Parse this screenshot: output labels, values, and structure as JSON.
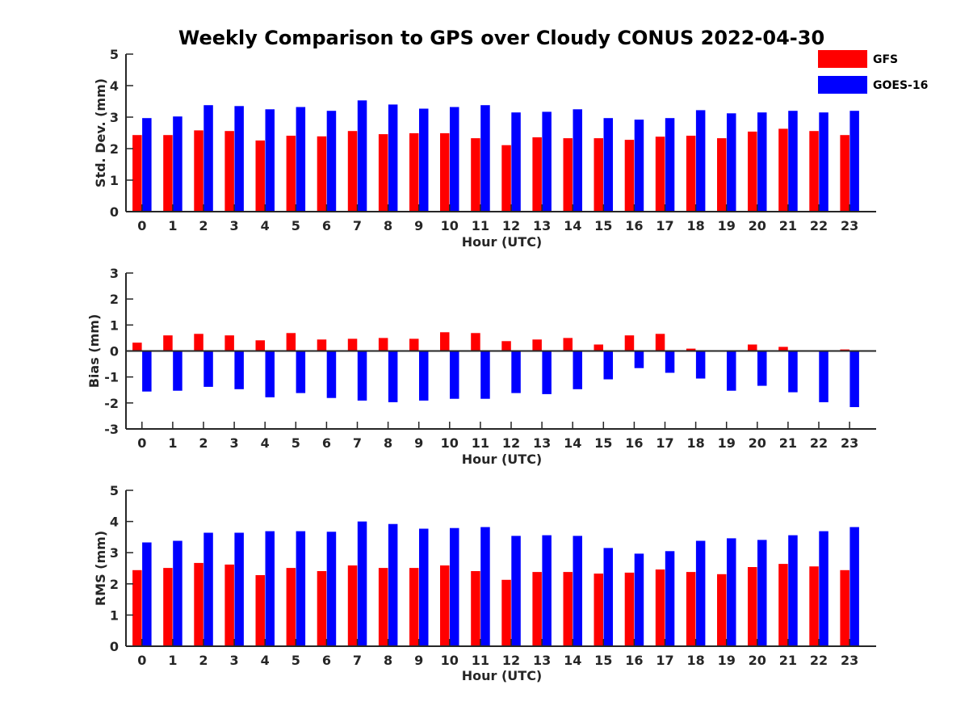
{
  "title": "Weekly Comparison to GPS over Cloudy CONUS 2022-04-30",
  "legend": [
    {
      "name": "GFS",
      "color": "#ff0000"
    },
    {
      "name": "GOES-16",
      "color": "#0000ff"
    }
  ],
  "chart_data": [
    {
      "type": "bar",
      "title": "Weekly Comparison to GPS over Cloudy CONUS 2022-04-30",
      "xlabel": "Hour (UTC)",
      "ylabel": "Std. Dev. (mm)",
      "ylim": [
        0,
        5
      ],
      "yticks": [
        0,
        1,
        2,
        3,
        4,
        5
      ],
      "categories": [
        "0",
        "1",
        "2",
        "3",
        "4",
        "5",
        "6",
        "7",
        "8",
        "9",
        "10",
        "11",
        "12",
        "13",
        "14",
        "15",
        "16",
        "17",
        "18",
        "19",
        "20",
        "21",
        "22",
        "23"
      ],
      "legend_position": "top-right",
      "grid": false,
      "series": [
        {
          "name": "GFS",
          "color": "#ff0000",
          "values": [
            2.43,
            2.43,
            2.58,
            2.56,
            2.26,
            2.41,
            2.39,
            2.56,
            2.46,
            2.49,
            2.49,
            2.33,
            2.11,
            2.36,
            2.33,
            2.33,
            2.28,
            2.38,
            2.41,
            2.33,
            2.54,
            2.63,
            2.56,
            2.43
          ]
        },
        {
          "name": "GOES-16",
          "color": "#0000ff",
          "values": [
            2.97,
            3.02,
            3.38,
            3.35,
            3.25,
            3.32,
            3.2,
            3.53,
            3.4,
            3.27,
            3.32,
            3.38,
            3.15,
            3.17,
            3.25,
            2.97,
            2.92,
            2.97,
            3.22,
            3.12,
            3.15,
            3.2,
            3.15,
            3.2
          ]
        }
      ]
    },
    {
      "type": "bar",
      "xlabel": "Hour (UTC)",
      "ylabel": "Bias (mm)",
      "ylim": [
        -3,
        3
      ],
      "yticks": [
        -3,
        -2,
        -1,
        0,
        1,
        2,
        3
      ],
      "categories": [
        "0",
        "1",
        "2",
        "3",
        "4",
        "5",
        "6",
        "7",
        "8",
        "9",
        "10",
        "11",
        "12",
        "13",
        "14",
        "15",
        "16",
        "17",
        "18",
        "19",
        "20",
        "21",
        "22",
        "23"
      ],
      "grid": false,
      "series": [
        {
          "name": "GFS",
          "color": "#ff0000",
          "values": [
            0.32,
            0.6,
            0.66,
            0.6,
            0.41,
            0.69,
            0.44,
            0.47,
            0.5,
            0.47,
            0.72,
            0.69,
            0.38,
            0.44,
            0.5,
            0.25,
            0.6,
            0.66,
            0.09,
            0.03,
            0.25,
            0.16,
            0.03,
            0.06
          ]
        },
        {
          "name": "GOES-16",
          "color": "#0000ff",
          "values": [
            -1.56,
            -1.53,
            -1.38,
            -1.47,
            -1.78,
            -1.62,
            -1.81,
            -1.91,
            -1.97,
            -1.91,
            -1.84,
            -1.84,
            -1.62,
            -1.66,
            -1.47,
            -1.09,
            -0.66,
            -0.84,
            -1.06,
            -1.53,
            -1.34,
            -1.59,
            -1.97,
            -2.16
          ]
        }
      ]
    },
    {
      "type": "bar",
      "xlabel": "Hour (UTC)",
      "ylabel": "RMS (mm)",
      "ylim": [
        0,
        5
      ],
      "yticks": [
        0,
        1,
        2,
        3,
        4,
        5
      ],
      "categories": [
        "0",
        "1",
        "2",
        "3",
        "4",
        "5",
        "6",
        "7",
        "8",
        "9",
        "10",
        "11",
        "12",
        "13",
        "14",
        "15",
        "16",
        "17",
        "18",
        "19",
        "20",
        "21",
        "22",
        "23"
      ],
      "grid": false,
      "series": [
        {
          "name": "GFS",
          "color": "#ff0000",
          "values": [
            2.44,
            2.51,
            2.67,
            2.62,
            2.28,
            2.51,
            2.41,
            2.59,
            2.51,
            2.51,
            2.59,
            2.41,
            2.13,
            2.38,
            2.38,
            2.33,
            2.36,
            2.46,
            2.38,
            2.31,
            2.54,
            2.64,
            2.56,
            2.44
          ]
        },
        {
          "name": "GOES-16",
          "color": "#0000ff",
          "values": [
            3.33,
            3.38,
            3.64,
            3.64,
            3.69,
            3.69,
            3.67,
            4.0,
            3.92,
            3.77,
            3.79,
            3.82,
            3.54,
            3.56,
            3.54,
            3.15,
            2.97,
            3.05,
            3.38,
            3.46,
            3.41,
            3.56,
            3.69,
            3.82
          ]
        }
      ]
    }
  ]
}
